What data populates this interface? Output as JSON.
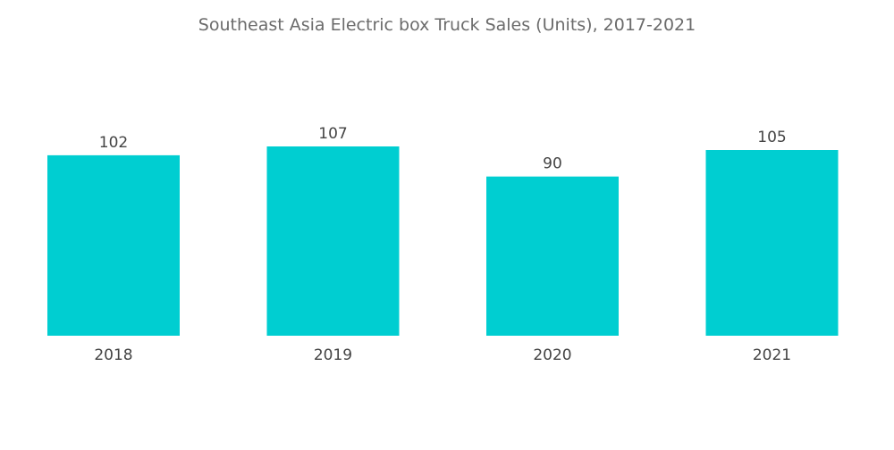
{
  "chart_data": {
    "type": "bar",
    "title": "Southeast Asia Electric box Truck Sales (Units), 2017-2021",
    "xlabel": "",
    "ylabel": "",
    "categories": [
      "2018",
      "2019",
      "2020",
      "2021"
    ],
    "values": [
      102,
      107,
      90,
      105
    ],
    "ylim": [
      0,
      107
    ],
    "grid": false,
    "legend": "none",
    "colors": {
      "bar": "#00ced1",
      "title": "#6b6b6b",
      "label": "#444444"
    }
  }
}
